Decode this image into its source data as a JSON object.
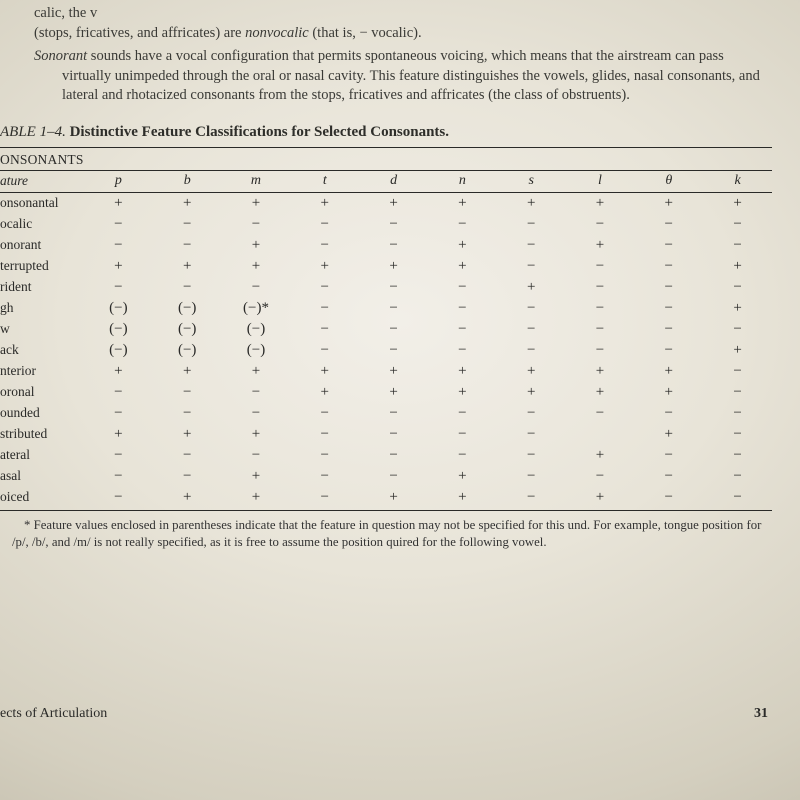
{
  "intro": {
    "line1a": "calic, the v",
    "line1b": "(stops, fricatives, and affricates) are ",
    "line1_em": "nonvocalic",
    "line1c": " (that is, − vocalic).",
    "para2_em": "Sonorant",
    "para2": " sounds have a vocal configuration that permits spontaneous voicing, which means that the airstream can pass virtually unimpeded through the oral or nasal cavity. This feature distinguishes the vowels, glides, nasal consonants, and lateral and rhotacized consonants from the stops, fricatives and affricates (the class of obstruents)."
  },
  "table": {
    "label": "ABLE 1–4.",
    "title": "Distinctive Feature Classifications for Selected Consonants.",
    "section": "ONSONANTS",
    "feature_hdr": "ature",
    "columns": [
      "p",
      "b",
      "m",
      "t",
      "d",
      "n",
      "s",
      "l",
      "θ",
      "k"
    ],
    "rows": [
      {
        "name": "onsonantal",
        "v": [
          "+",
          "+",
          "+",
          "+",
          "+",
          "+",
          "+",
          "+",
          "+",
          "+"
        ]
      },
      {
        "name": "ocalic",
        "v": [
          "−",
          "−",
          "−",
          "−",
          "−",
          "−",
          "−",
          "−",
          "−",
          "−"
        ]
      },
      {
        "name": "onorant",
        "v": [
          "−",
          "−",
          "+",
          "−",
          "−",
          "+",
          "−",
          "+",
          "−",
          "−"
        ]
      },
      {
        "name": "terrupted",
        "v": [
          "+",
          "+",
          "+",
          "+",
          "+",
          "+",
          "−",
          "−",
          "−",
          "+"
        ]
      },
      {
        "name": "rident",
        "v": [
          "−",
          "−",
          "−",
          "−",
          "−",
          "−",
          "+",
          "−",
          "−",
          "−"
        ]
      },
      {
        "name": "gh",
        "v": [
          "(−)",
          "(−)",
          "(−)*",
          "−",
          "−",
          "−",
          "−",
          "−",
          "−",
          "+"
        ]
      },
      {
        "name": "w",
        "v": [
          "(−)",
          "(−)",
          "(−)",
          "−",
          "−",
          "−",
          "−",
          "−",
          "−",
          "−"
        ]
      },
      {
        "name": "ack",
        "v": [
          "(−)",
          "(−)",
          "(−)",
          "−",
          "−",
          "−",
          "−",
          "−",
          "−",
          "+"
        ]
      },
      {
        "name": "nterior",
        "v": [
          "+",
          "+",
          "+",
          "+",
          "+",
          "+",
          "+",
          "+",
          "+",
          "−"
        ]
      },
      {
        "name": "oronal",
        "v": [
          "−",
          "−",
          "−",
          "+",
          "+",
          "+",
          "+",
          "+",
          "+",
          "−"
        ]
      },
      {
        "name": "ounded",
        "v": [
          "−",
          "−",
          "−",
          "−",
          "−",
          "−",
          "−",
          "−",
          "−",
          "−"
        ]
      },
      {
        "name": "stributed",
        "v": [
          "+",
          "+",
          "+",
          "−",
          "−",
          "−",
          "−",
          "",
          "+",
          "−"
        ]
      },
      {
        "name": "ateral",
        "v": [
          "−",
          "−",
          "−",
          "−",
          "−",
          "−",
          "−",
          "+",
          "−",
          "−"
        ]
      },
      {
        "name": "asal",
        "v": [
          "−",
          "−",
          "+",
          "−",
          "−",
          "+",
          "−",
          "−",
          "−",
          "−"
        ]
      },
      {
        "name": "oiced",
        "v": [
          "−",
          "+",
          "+",
          "−",
          "+",
          "+",
          "−",
          "+",
          "−",
          "−"
        ]
      }
    ],
    "footnote": "* Feature values enclosed in parentheses indicate that the feature in question may not be specified for this und. For example, tongue position for /p/, /b/, and /m/ is not really specified, as it is free to assume the position quired for the following vowel."
  },
  "footer": {
    "left": "ects of Articulation",
    "page": "31"
  },
  "style": {
    "text_color": "#2a2a28",
    "rule_color": "#2a2a28",
    "bg_inner": "#f2efe8",
    "bg_outer": "#b8b2a0",
    "body_fontsize_pt": 11,
    "table_fontsize_pt": 11,
    "footnote_fontsize_pt": 9.5,
    "font_family": "Times New Roman"
  }
}
